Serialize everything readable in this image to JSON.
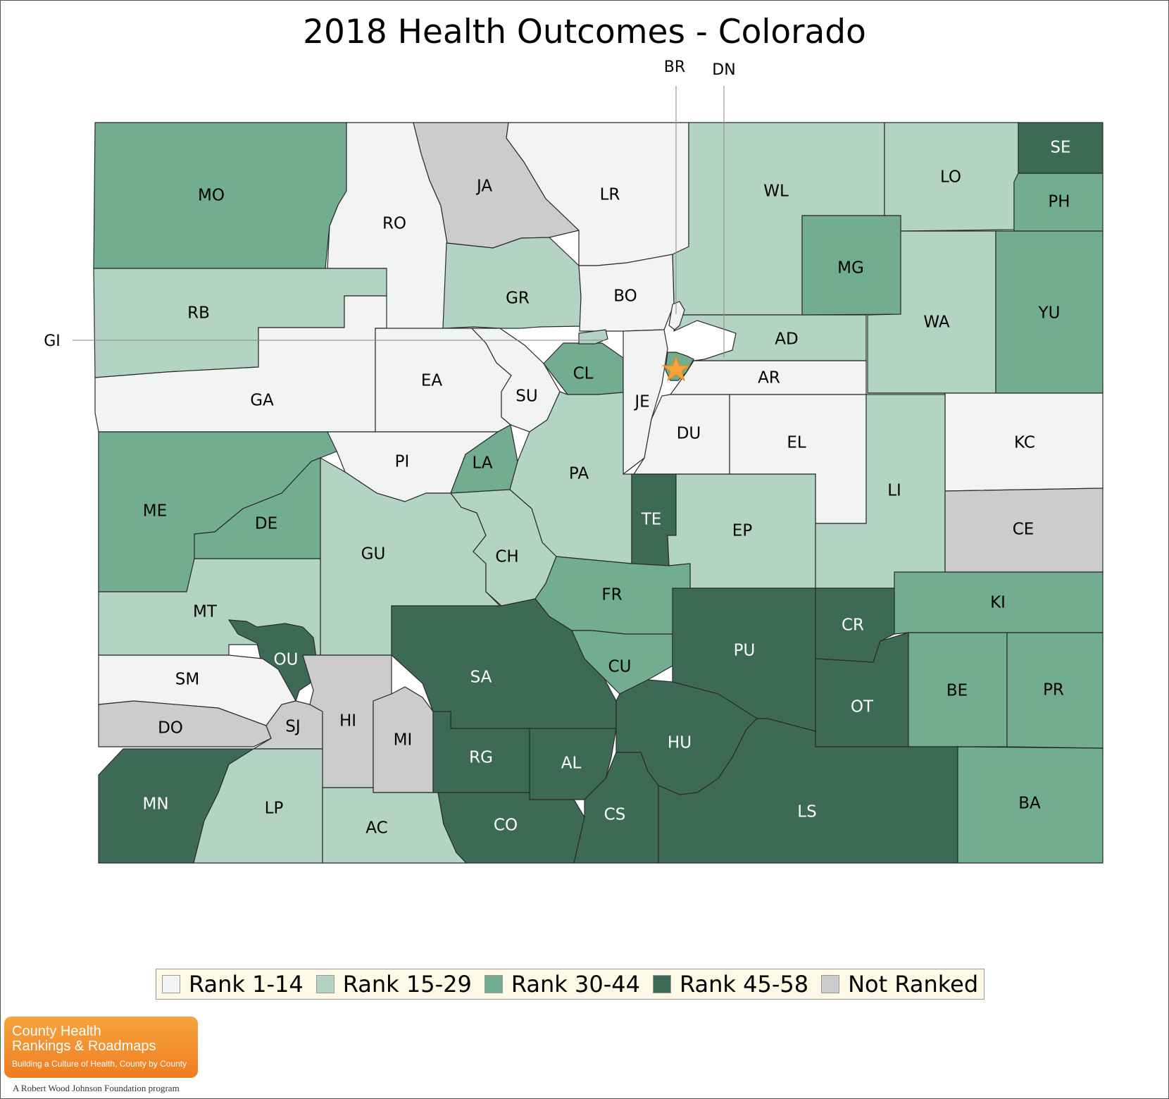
{
  "title": "2018 Health Outcomes - Colorado",
  "legend": [
    {
      "label": "Rank 1-14",
      "color": "#f1f4f2"
    },
    {
      "label": "Rank 15-29",
      "color": "#b3d4c4"
    },
    {
      "label": "Rank 30-44",
      "color": "#72ac91"
    },
    {
      "label": "Rank 45-58",
      "color": "#3d6a56"
    },
    {
      "label": "Not Ranked",
      "color": "#cccccc"
    }
  ],
  "counties": [
    {
      "abbr": "MO",
      "rank_group": "30-44"
    },
    {
      "abbr": "RO",
      "rank_group": "1-14"
    },
    {
      "abbr": "JA",
      "rank_group": "not-ranked"
    },
    {
      "abbr": "LR",
      "rank_group": "1-14"
    },
    {
      "abbr": "WL",
      "rank_group": "15-29"
    },
    {
      "abbr": "LO",
      "rank_group": "15-29"
    },
    {
      "abbr": "SE",
      "rank_group": "45-58"
    },
    {
      "abbr": "PH",
      "rank_group": "30-44"
    },
    {
      "abbr": "RB",
      "rank_group": "15-29"
    },
    {
      "abbr": "GR",
      "rank_group": "15-29"
    },
    {
      "abbr": "BO",
      "rank_group": "1-14"
    },
    {
      "abbr": "MG",
      "rank_group": "30-44"
    },
    {
      "abbr": "WA",
      "rank_group": "15-29"
    },
    {
      "abbr": "YU",
      "rank_group": "30-44"
    },
    {
      "abbr": "GA",
      "rank_group": "1-14"
    },
    {
      "abbr": "EA",
      "rank_group": "1-14"
    },
    {
      "abbr": "SU",
      "rank_group": "1-14"
    },
    {
      "abbr": "CL",
      "rank_group": "30-44"
    },
    {
      "abbr": "JE",
      "rank_group": "1-14"
    },
    {
      "abbr": "AD",
      "rank_group": "15-29"
    },
    {
      "abbr": "AR",
      "rank_group": "1-14"
    },
    {
      "abbr": "DU",
      "rank_group": "1-14"
    },
    {
      "abbr": "EL",
      "rank_group": "1-14"
    },
    {
      "abbr": "KC",
      "rank_group": "1-14"
    },
    {
      "abbr": "ME",
      "rank_group": "30-44"
    },
    {
      "abbr": "DE",
      "rank_group": "30-44"
    },
    {
      "abbr": "PI",
      "rank_group": "1-14"
    },
    {
      "abbr": "LA",
      "rank_group": "30-44"
    },
    {
      "abbr": "PA",
      "rank_group": "15-29"
    },
    {
      "abbr": "TE",
      "rank_group": "45-58"
    },
    {
      "abbr": "EP",
      "rank_group": "15-29"
    },
    {
      "abbr": "LI",
      "rank_group": "15-29"
    },
    {
      "abbr": "CE",
      "rank_group": "not-ranked"
    },
    {
      "abbr": "GU",
      "rank_group": "15-29"
    },
    {
      "abbr": "CH",
      "rank_group": "15-29"
    },
    {
      "abbr": "FR",
      "rank_group": "30-44"
    },
    {
      "abbr": "KI",
      "rank_group": "30-44"
    },
    {
      "abbr": "MT",
      "rank_group": "15-29"
    },
    {
      "abbr": "OU",
      "rank_group": "45-58"
    },
    {
      "abbr": "SA",
      "rank_group": "45-58"
    },
    {
      "abbr": "CU",
      "rank_group": "30-44"
    },
    {
      "abbr": "PU",
      "rank_group": "45-58"
    },
    {
      "abbr": "CR",
      "rank_group": "45-58"
    },
    {
      "abbr": "OT",
      "rank_group": "45-58"
    },
    {
      "abbr": "BE",
      "rank_group": "30-44"
    },
    {
      "abbr": "PR",
      "rank_group": "30-44"
    },
    {
      "abbr": "SM",
      "rank_group": "1-14"
    },
    {
      "abbr": "DO",
      "rank_group": "not-ranked"
    },
    {
      "abbr": "SJ",
      "rank_group": "not-ranked"
    },
    {
      "abbr": "HI",
      "rank_group": "not-ranked"
    },
    {
      "abbr": "MI",
      "rank_group": "not-ranked"
    },
    {
      "abbr": "RG",
      "rank_group": "45-58"
    },
    {
      "abbr": "AL",
      "rank_group": "45-58"
    },
    {
      "abbr": "HU",
      "rank_group": "45-58"
    },
    {
      "abbr": "MN",
      "rank_group": "45-58"
    },
    {
      "abbr": "LP",
      "rank_group": "15-29"
    },
    {
      "abbr": "AC",
      "rank_group": "15-29"
    },
    {
      "abbr": "CO",
      "rank_group": "45-58"
    },
    {
      "abbr": "CS",
      "rank_group": "45-58"
    },
    {
      "abbr": "LS",
      "rank_group": "45-58"
    },
    {
      "abbr": "BA",
      "rank_group": "30-44"
    },
    {
      "abbr": "BR",
      "rank_group": "1-14"
    },
    {
      "abbr": "DN",
      "rank_group": "30-44"
    },
    {
      "abbr": "GI",
      "rank_group": "15-29"
    }
  ],
  "callouts": [
    "BR",
    "DN",
    "GI"
  ],
  "capital_icon": "star-icon",
  "capital_color": "#f5a23a",
  "logo": {
    "line1": "County Health",
    "line2": "Rankings & Roadmaps",
    "tagline": "Building a Culture of Health, County by County",
    "foundation": "A Robert Wood Johnson Foundation program"
  }
}
